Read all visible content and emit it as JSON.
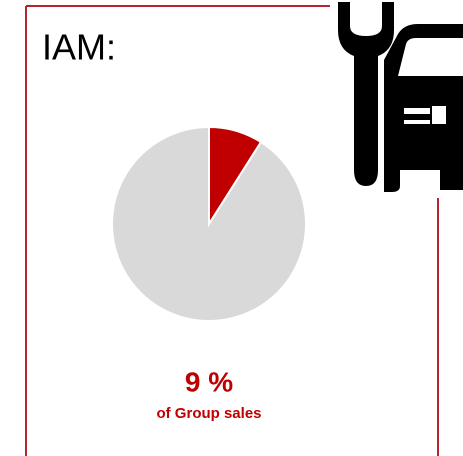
{
  "chart_data": {
    "type": "pie",
    "title": "IAM:",
    "subtitle": "of Group sales",
    "values": [
      9,
      91
    ],
    "value_labels": [
      "9 %",
      null
    ],
    "colors": [
      "#c00000",
      "#d9d9d9"
    ],
    "frame_color": "#b3262b"
  }
}
